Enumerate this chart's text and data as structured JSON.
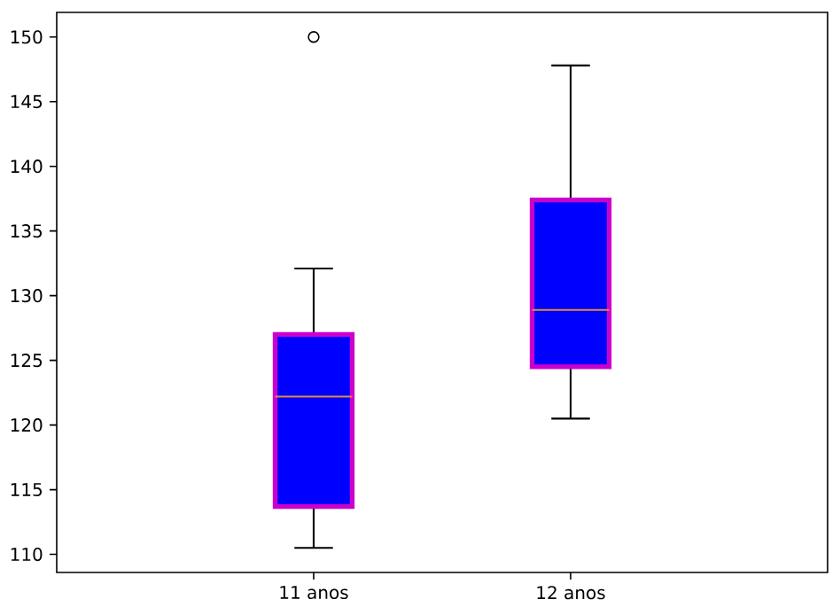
{
  "chart_data": {
    "type": "box",
    "categories": [
      "11 anos",
      "12 anos"
    ],
    "series": [
      {
        "color": "#0000ff",
        "boxes": [
          {
            "low": 110.5,
            "q1": 113.7,
            "median": 122.2,
            "q3": 127.0,
            "high": 132.1,
            "outliers": [
              150
            ]
          },
          {
            "low": 120.5,
            "q1": 124.5,
            "median": 128.9,
            "q3": 137.4,
            "high": 147.8
          }
        ]
      }
    ],
    "ylim": [
      108.6,
      151.9
    ],
    "yticks": [
      110,
      115,
      120,
      125,
      130,
      135,
      140,
      145,
      150
    ]
  }
}
